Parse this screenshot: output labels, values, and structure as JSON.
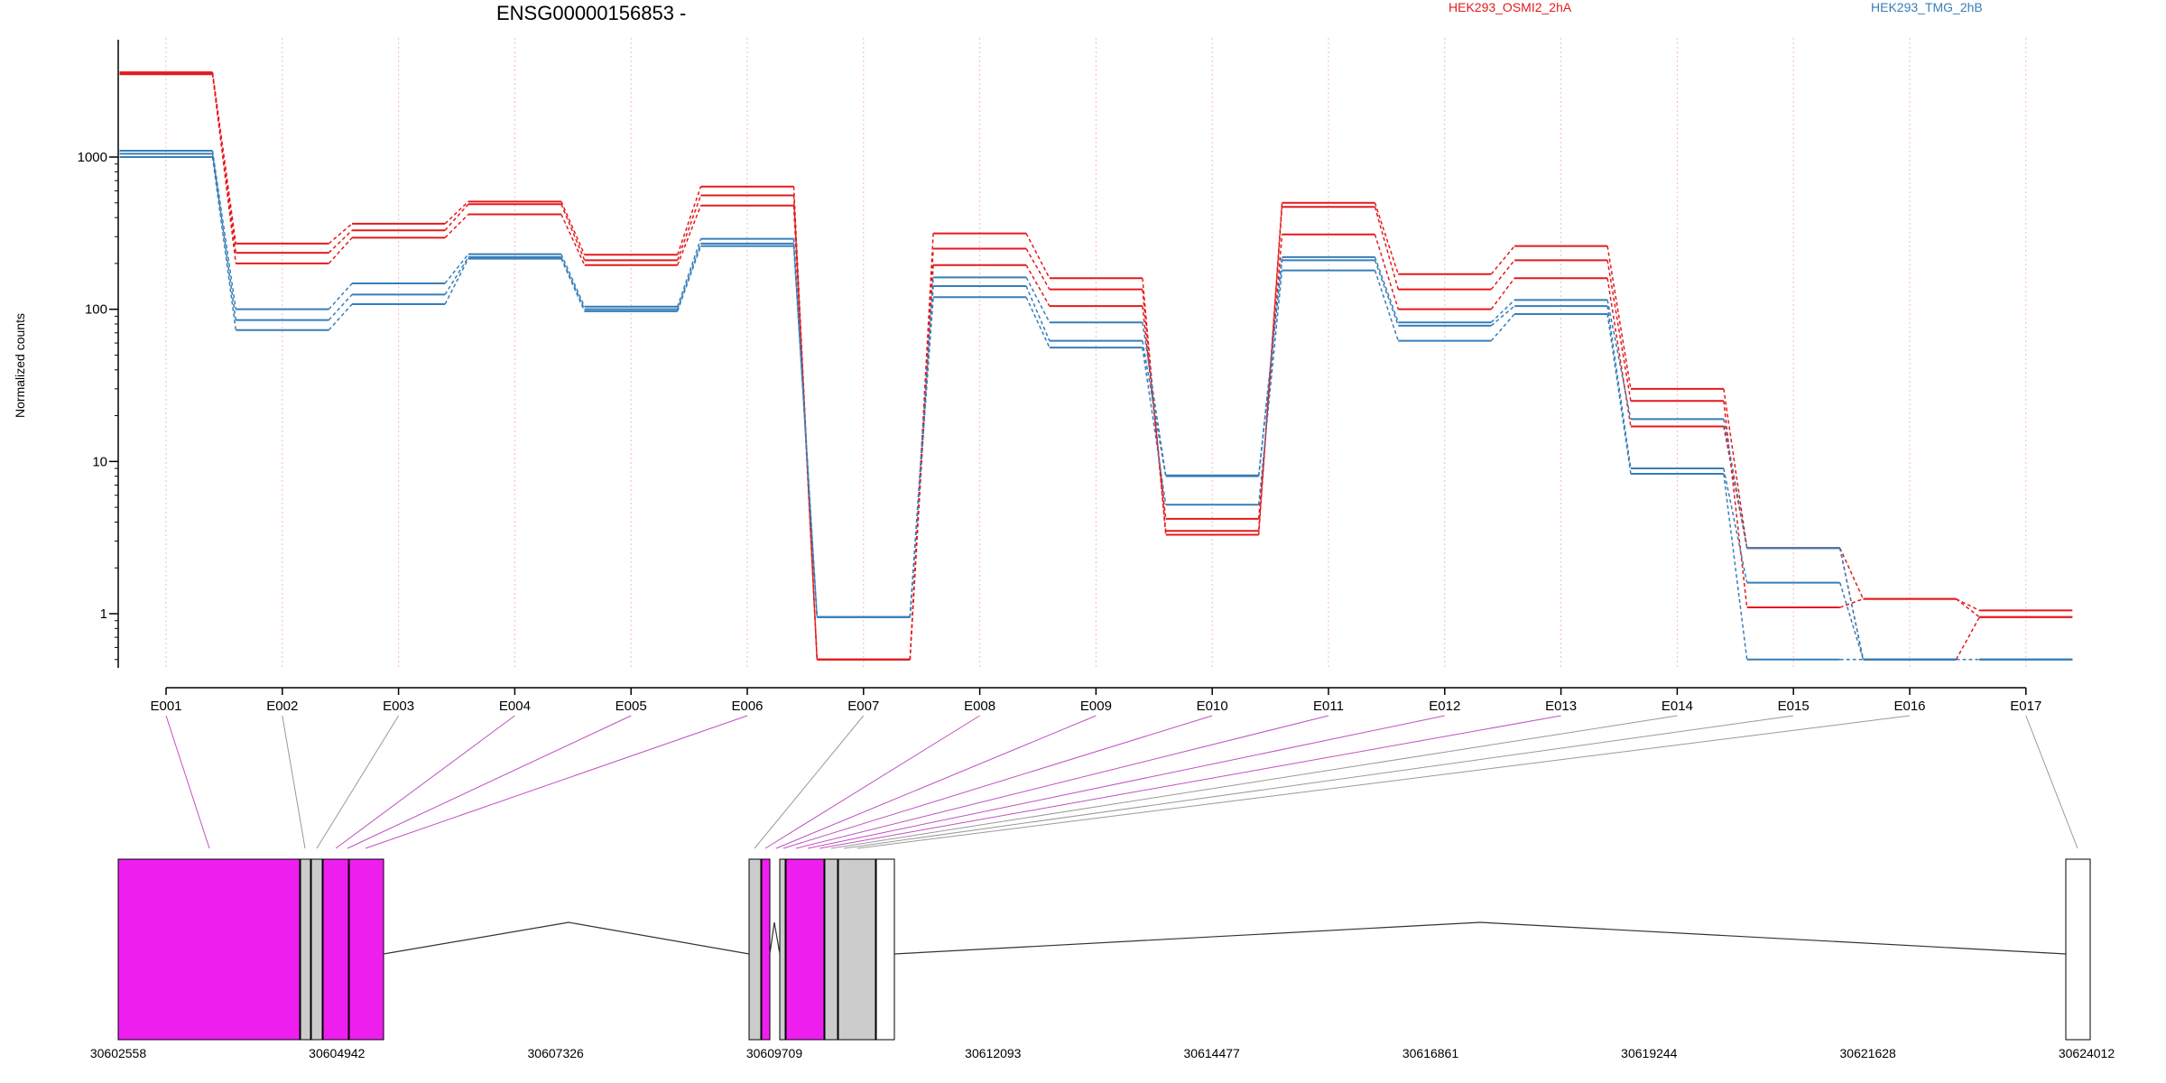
{
  "chart_data": {
    "type": "line",
    "title": "ENSG00000156853 -",
    "ylabel": "Normalized counts",
    "yscale": "log",
    "ylim": [
      0.5,
      5000
    ],
    "yticks": [
      1,
      10,
      100,
      1000
    ],
    "categories": [
      "E001",
      "E002",
      "E003",
      "E004",
      "E005",
      "E006",
      "E007",
      "E008",
      "E009",
      "E010",
      "E011",
      "E012",
      "E013",
      "E014",
      "E015",
      "E016",
      "E017"
    ],
    "series": [
      {
        "name": "HEK293_OSMI2_2hA",
        "color": "#e41a1c",
        "values": [
          3600,
          270,
          365,
          510,
          228,
          640,
          0.5,
          315,
          160,
          3.3,
          500,
          170,
          260,
          30,
          2.7,
          1.25,
          1.05
        ]
      },
      {
        "name": "HEK293_OSMI2_2hA",
        "color": "#e41a1c",
        "values": [
          3550,
          235,
          330,
          490,
          210,
          560,
          0.5,
          250,
          135,
          3.5,
          470,
          135,
          210,
          25,
          1.1,
          1.25,
          0.95
        ]
      },
      {
        "name": "HEK293_OSMI2_2hA",
        "color": "#e41a1c",
        "values": [
          3500,
          200,
          295,
          420,
          195,
          480,
          0.5,
          195,
          105,
          4.2,
          310,
          100,
          160,
          17,
          2.7,
          0.5,
          0.95
        ]
      },
      {
        "name": "HEK293_TMG_2hB",
        "color": "#377eb8",
        "values": [
          1100,
          100,
          148,
          230,
          104,
          290,
          0.95,
          162,
          82,
          8.1,
          220,
          82,
          115,
          19,
          2.7,
          0.5,
          0.5
        ]
      },
      {
        "name": "HEK293_TMG_2hB",
        "color": "#377eb8",
        "values": [
          1050,
          85,
          125,
          220,
          100,
          270,
          0.95,
          142,
          62,
          8.0,
          210,
          78,
          105,
          9,
          1.6,
          0.5,
          0.5
        ]
      },
      {
        "name": "HEK293_TMG_2hB",
        "color": "#377eb8",
        "values": [
          1000,
          73,
          108,
          215,
          97,
          260,
          0.95,
          120,
          56,
          5.2,
          180,
          62,
          93,
          8.3,
          0.5,
          0.5,
          0.5
        ]
      }
    ],
    "genome_axis_labels": [
      "30602558",
      "30604942",
      "30607326",
      "30609709",
      "30612093",
      "30614477",
      "30616861",
      "30619244",
      "30621628",
      "30624012"
    ],
    "exon_colors": {
      "significant": "#ee1fee",
      "other": "#cccccc",
      "noncoding": "#ffffff"
    }
  },
  "legend": {
    "series_a": "HEK293_OSMI2_2hA",
    "series_b": "HEK293_TMG_2hB",
    "color_a": "#e41a1c",
    "color_b": "#377eb8"
  }
}
